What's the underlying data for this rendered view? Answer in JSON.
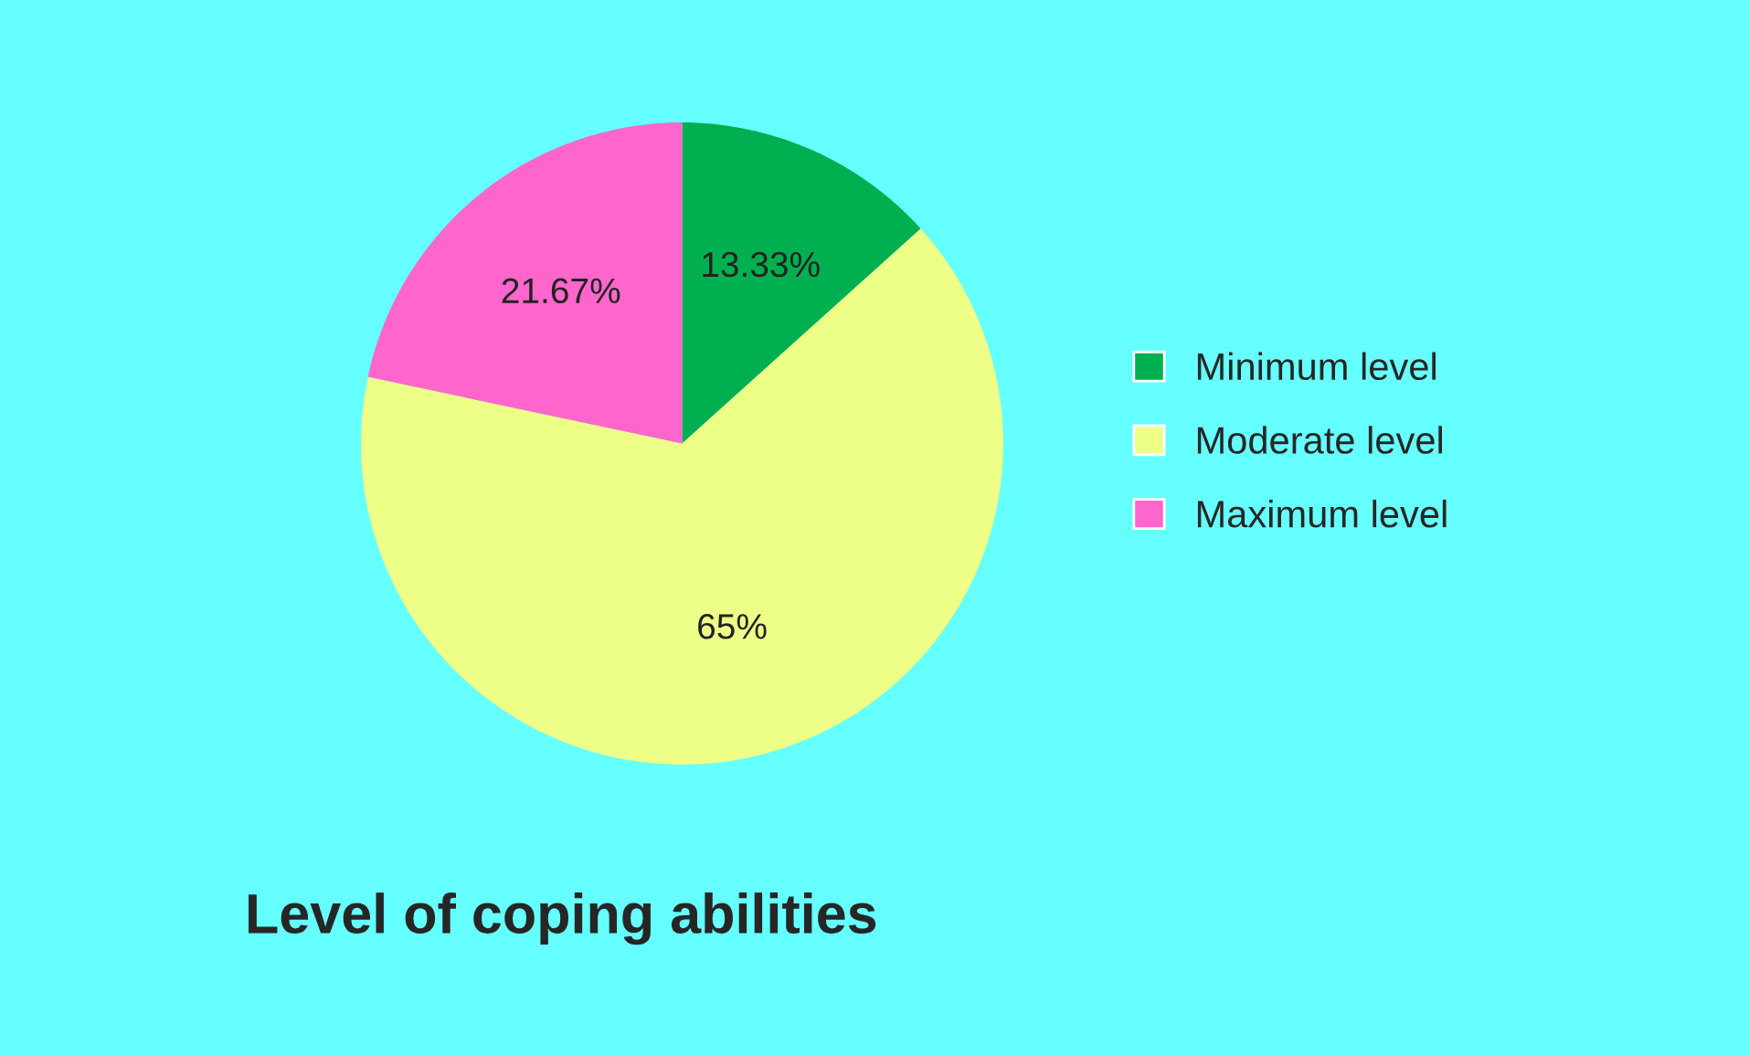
{
  "chart_data": {
    "type": "pie",
    "title": "Level of coping abilities",
    "categories": [
      "Minimum level",
      "Moderate level",
      "Maximum level"
    ],
    "values": [
      13.33,
      65,
      21.67
    ],
    "value_labels": [
      "13.33%",
      "65%",
      "21.67%"
    ],
    "colors": [
      "#00b050",
      "#eeff88",
      "#ff66cc"
    ],
    "legend": "right"
  }
}
